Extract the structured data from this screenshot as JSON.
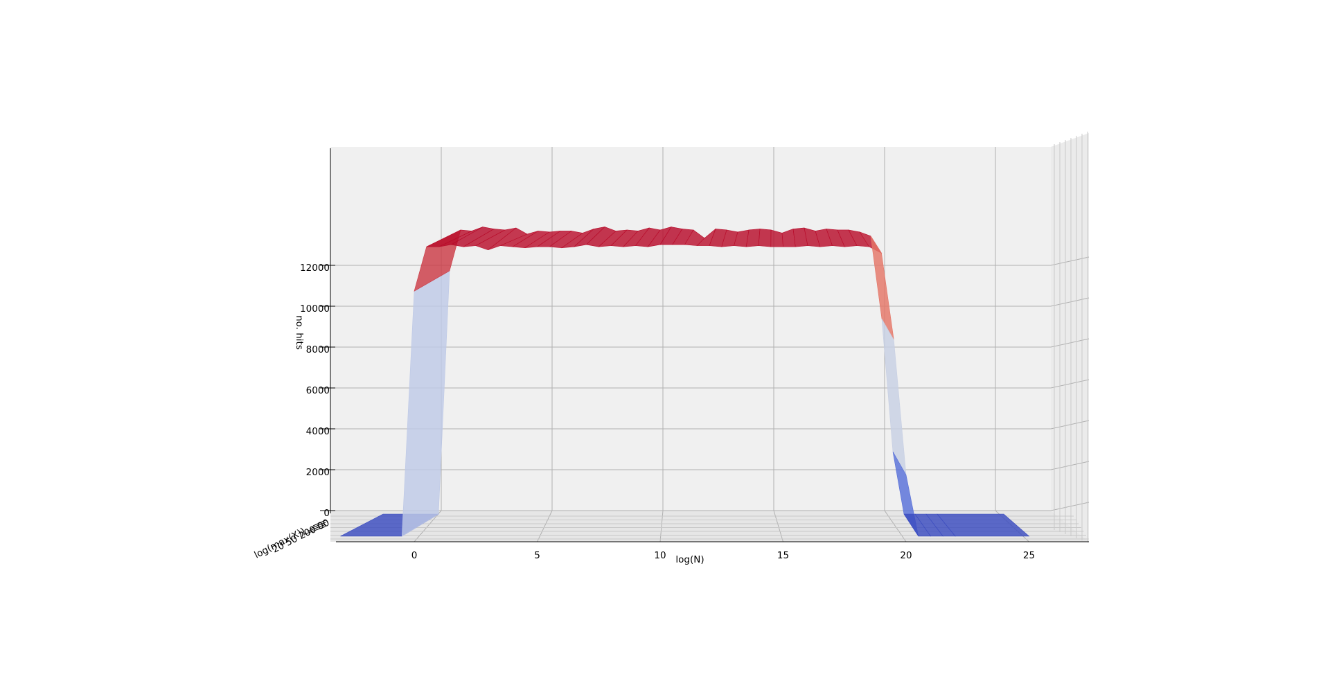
{
  "chart_data": {
    "type": "surface3d",
    "xlabel": "log(N)",
    "ylabel": "log(max(X))",
    "zlabel": "no. hits",
    "x_ticks": [
      "0",
      "5",
      "10",
      "15",
      "20",
      "25"
    ],
    "z_ticks": [
      "0",
      "2000",
      "4000",
      "6000",
      "8000",
      "10000",
      "12000"
    ],
    "y_tick_text": "20 50 200 00",
    "xlim": [
      -3,
      25.5
    ],
    "zlim": [
      0,
      14000
    ],
    "grid": true,
    "colormap": "coolwarm",
    "x": [
      -3,
      -0.5,
      0,
      0.5,
      1,
      1.5,
      2,
      2.5,
      3,
      3.5,
      4,
      4.5,
      5,
      5.5,
      6,
      6.5,
      7,
      7.5,
      8,
      8.5,
      9,
      9.5,
      10,
      10.5,
      11,
      11.5,
      12,
      12.5,
      13,
      13.5,
      14,
      14.5,
      15,
      15.5,
      16,
      16.5,
      17,
      17.5,
      18,
      18.5,
      19,
      19.5,
      20,
      20.5,
      21,
      21.5,
      22,
      25
    ],
    "front_z": [
      0,
      0,
      11600,
      13700,
      13700,
      13800,
      13700,
      13750,
      13550,
      13750,
      13700,
      13650,
      13700,
      13700,
      13650,
      13700,
      13800,
      13700,
      13750,
      13700,
      13750,
      13700,
      13800,
      13800,
      13800,
      13750,
      13750,
      13700,
      13750,
      13700,
      13750,
      13700,
      13700,
      13700,
      13750,
      13700,
      13750,
      13700,
      13750,
      13700,
      13400,
      9300,
      2900,
      0,
      0,
      0,
      0,
      0
    ],
    "back_z": [
      0,
      0,
      11900,
      13900,
      13850,
      14050,
      13950,
      13900,
      14000,
      13700,
      13850,
      13800,
      13850,
      13850,
      13750,
      13950,
      14050,
      13850,
      13900,
      13850,
      14000,
      13900,
      14050,
      13950,
      13900,
      13500,
      13950,
      13900,
      13800,
      13900,
      13950,
      13900,
      13750,
      13950,
      14000,
      13850,
      13950,
      13900,
      13900,
      13800,
      13600,
      9550,
      3050,
      0,
      0,
      0,
      0,
      0
    ]
  }
}
